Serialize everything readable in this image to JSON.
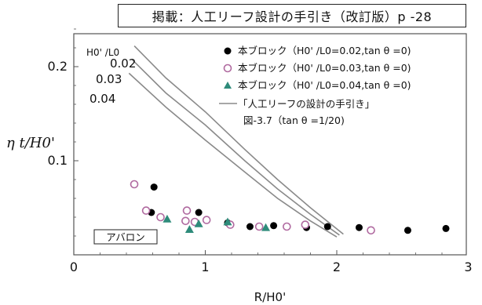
{
  "source_note": "掲載：人工リーフ設計の手引き（改訂版）p -28",
  "colors": {
    "block_002": "#000000",
    "block_003": "#b06aa0",
    "block_004": "#2e8b7a",
    "curve": "#8a8a8a",
    "frame": "#555555",
    "text": "#111111"
  },
  "chart_data": {
    "type": "scatter",
    "xlabel": "R/H0'",
    "ylabel": "η t/H0'",
    "xlim": [
      0,
      3
    ],
    "ylim": [
      0,
      0.25
    ],
    "x_ticks": [
      0,
      1,
      2,
      3
    ],
    "x_tick_labels": [
      "0",
      "1",
      "2",
      "3"
    ],
    "y_ticks": [
      0.1,
      0.2
    ],
    "y_tick_labels": [
      "0.1",
      "0.2"
    ],
    "grid": false,
    "legend_position": "top-right",
    "legend_title": "H0' /L0",
    "annotations": {
      "curve_labels": [
        "0.02",
        "0.03",
        "0.04"
      ],
      "product_label": "アバロン"
    },
    "series": [
      {
        "name": "本ブロック（H0' /L0=0.02,tan θ =0)",
        "marker": "filled-circle",
        "points": [
          [
            0.61,
            0.072
          ],
          [
            0.95,
            0.045
          ],
          [
            0.59,
            0.045
          ],
          [
            1.17,
            0.034
          ],
          [
            1.34,
            0.03
          ],
          [
            1.52,
            0.031
          ],
          [
            1.77,
            0.029
          ],
          [
            1.93,
            0.03
          ],
          [
            2.17,
            0.029
          ],
          [
            2.54,
            0.026
          ],
          [
            2.83,
            0.028
          ]
        ]
      },
      {
        "name": "本ブロック（H0' /L0=0.03,tan θ =0)",
        "marker": "open-circle",
        "points": [
          [
            0.46,
            0.075
          ],
          [
            0.55,
            0.047
          ],
          [
            0.66,
            0.04
          ],
          [
            0.86,
            0.047
          ],
          [
            0.85,
            0.036
          ],
          [
            0.92,
            0.035
          ],
          [
            1.01,
            0.037
          ],
          [
            1.19,
            0.032
          ],
          [
            1.41,
            0.03
          ],
          [
            1.62,
            0.03
          ],
          [
            1.76,
            0.032
          ],
          [
            2.26,
            0.026
          ]
        ]
      },
      {
        "name": "本ブロック（H0' /L0=0.04,tan θ =0)",
        "marker": "triangle",
        "points": [
          [
            0.71,
            0.038
          ],
          [
            0.88,
            0.027
          ],
          [
            0.95,
            0.033
          ],
          [
            1.17,
            0.035
          ],
          [
            1.46,
            0.029
          ]
        ]
      }
    ],
    "curves": {
      "legend_label": "「人工リーフの設計の手引き」",
      "legend_label_2": "図-3.7（tan θ =1/20)",
      "lines": [
        {
          "label": "0.02",
          "points": [
            [
              0.46,
              0.222
            ],
            [
              0.7,
              0.188
            ],
            [
              1.0,
              0.152
            ],
            [
              1.3,
              0.112
            ],
            [
              1.55,
              0.08
            ],
            [
              1.8,
              0.05
            ],
            [
              2.05,
              0.022
            ]
          ]
        },
        {
          "label": "0.03",
          "points": [
            [
              0.44,
              0.208
            ],
            [
              0.7,
              0.172
            ],
            [
              1.0,
              0.138
            ],
            [
              1.3,
              0.1
            ],
            [
              1.55,
              0.07
            ],
            [
              1.8,
              0.043
            ],
            [
              2.02,
              0.021
            ]
          ]
        },
        {
          "label": "0.04",
          "points": [
            [
              0.42,
              0.193
            ],
            [
              0.7,
              0.157
            ],
            [
              1.0,
              0.122
            ],
            [
              1.3,
              0.088
            ],
            [
              1.55,
              0.06
            ],
            [
              1.8,
              0.036
            ],
            [
              2.0,
              0.019
            ]
          ]
        }
      ]
    }
  }
}
